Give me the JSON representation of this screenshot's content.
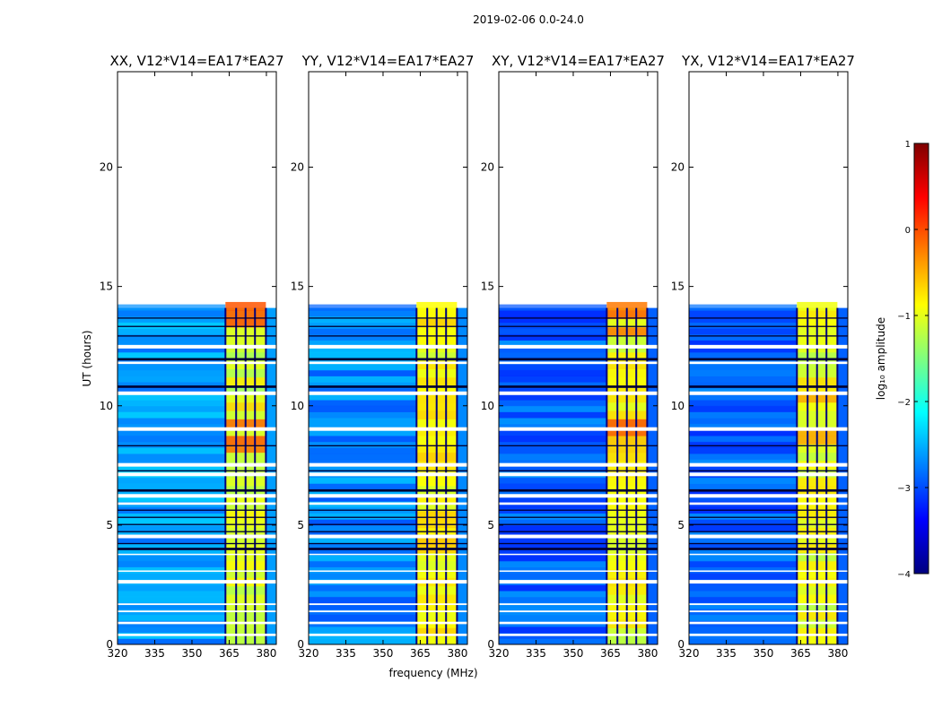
{
  "chart_data": {
    "type": "heatmap",
    "suptitle": "2019-02-06 0.0-24.0",
    "xlabel": "frequency (MHz)",
    "ylabel": "UT (hours)",
    "xlim": [
      320,
      384
    ],
    "ylim": [
      0,
      24
    ],
    "xticks": [
      320,
      335,
      350,
      365,
      380
    ],
    "yticks": [
      0,
      5,
      10,
      15,
      20
    ],
    "data_extent_hours": [
      0,
      14.1
    ],
    "colorbar": {
      "label": "log₁₀ amplitude",
      "min": -4,
      "max": 1,
      "ticks": [
        1,
        0,
        -1,
        -2,
        -3,
        -4
      ],
      "tick_labels": [
        "1",
        "0",
        "−1",
        "−2",
        "−3",
        "−4"
      ],
      "colormap": [
        "#00007f",
        "#0000ff",
        "#007fff",
        "#00ffff",
        "#7fff7f",
        "#ffff00",
        "#ff7f00",
        "#ff0000",
        "#7f0000"
      ]
    },
    "band_mhz": [
      363.5,
      379.8
    ],
    "band_subchannel_edges_mhz": [
      363.5,
      367.8,
      371.6,
      375.4,
      379.8
    ],
    "panels": [
      {
        "title": "XX, V12*V14=EA17*EA27",
        "base_log_amp": -2.6,
        "band_log_amp": -1.2,
        "hot_log_amp": 0.1
      },
      {
        "title": "YY, V12*V14=EA17*EA27",
        "base_log_amp": -2.7,
        "band_log_amp": -1.0,
        "hot_log_amp": -0.5
      },
      {
        "title": "XY, V12*V14=EA17*EA27",
        "base_log_amp": -2.9,
        "band_log_amp": -1.1,
        "hot_log_amp": 0.0
      },
      {
        "title": "YX, V12*V14=EA17*EA27",
        "base_log_amp": -2.9,
        "band_log_amp": -1.1,
        "hot_log_amp": -0.4
      }
    ],
    "flagged_gaps_hours": [
      [
        0.35,
        0.45
      ],
      [
        0.85,
        0.95
      ],
      [
        1.35,
        1.42
      ],
      [
        1.65,
        1.72
      ],
      [
        2.55,
        2.7
      ],
      [
        3.05,
        3.1
      ],
      [
        3.75,
        3.8
      ],
      [
        4.45,
        4.6
      ],
      [
        5.85,
        5.95
      ],
      [
        6.15,
        6.3
      ],
      [
        7.05,
        7.2
      ],
      [
        7.45,
        7.6
      ],
      [
        8.95,
        9.1
      ],
      [
        10.45,
        10.6
      ],
      [
        11.75,
        11.85
      ],
      [
        12.4,
        12.55
      ]
    ],
    "dark_rows_hours": [
      [
        3.95,
        4.05
      ],
      [
        4.2,
        4.25
      ],
      [
        4.7,
        4.75
      ],
      [
        5.0,
        5.05
      ],
      [
        5.3,
        5.35
      ],
      [
        5.6,
        5.65
      ],
      [
        6.4,
        6.5
      ],
      [
        7.25,
        7.3
      ],
      [
        8.3,
        8.35
      ],
      [
        10.75,
        10.85
      ],
      [
        11.9,
        12.0
      ],
      [
        12.9,
        12.95
      ],
      [
        13.3,
        13.35
      ],
      [
        13.65,
        13.7
      ]
    ]
  }
}
